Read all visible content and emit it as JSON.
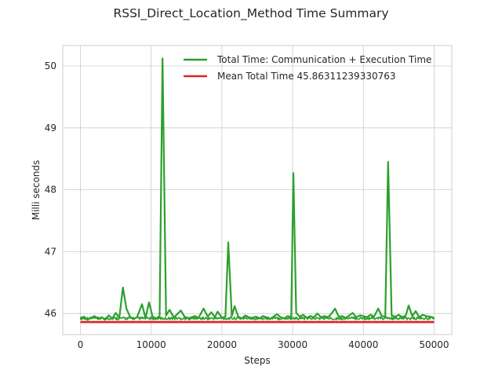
{
  "chart_data": {
    "type": "line",
    "title": "RSSI_Direct_Location_Method Time Summary",
    "xlabel": "Steps",
    "ylabel": "Milli seconds",
    "xlim": [
      -2500,
      52500
    ],
    "ylim": [
      45.66,
      50.33
    ],
    "xticks": [
      0,
      10000,
      20000,
      30000,
      40000,
      50000
    ],
    "yticks": [
      46,
      47,
      48,
      49,
      50
    ],
    "grid": true,
    "legend_position": "top-right",
    "series": [
      {
        "name": "Total Time: Communication + Execution Time",
        "color": "#2ca02c",
        "baseline": 45.9,
        "x_range": [
          0,
          50000
        ],
        "points": [
          [
            0,
            45.92
          ],
          [
            500,
            45.95
          ],
          [
            1000,
            45.9
          ],
          [
            1500,
            45.93
          ],
          [
            2000,
            45.96
          ],
          [
            2500,
            45.91
          ],
          [
            3000,
            45.94
          ],
          [
            3500,
            45.9
          ],
          [
            4000,
            45.97
          ],
          [
            4500,
            45.92
          ],
          [
            5000,
            46.01
          ],
          [
            5500,
            45.93
          ],
          [
            6000,
            46.42
          ],
          [
            6500,
            46.08
          ],
          [
            7000,
            45.95
          ],
          [
            7500,
            45.91
          ],
          [
            8000,
            45.94
          ],
          [
            8700,
            46.15
          ],
          [
            9200,
            45.93
          ],
          [
            9700,
            46.18
          ],
          [
            10200,
            45.95
          ],
          [
            10700,
            45.92
          ],
          [
            11200,
            45.96
          ],
          [
            11600,
            50.12
          ],
          [
            12100,
            45.97
          ],
          [
            12600,
            46.06
          ],
          [
            13200,
            45.94
          ],
          [
            13600,
            45.98
          ],
          [
            14200,
            46.05
          ],
          [
            14700,
            45.95
          ],
          [
            15200,
            45.92
          ],
          [
            15700,
            45.94
          ],
          [
            16200,
            45.96
          ],
          [
            16700,
            45.93
          ],
          [
            17400,
            46.08
          ],
          [
            18000,
            45.95
          ],
          [
            18500,
            46.02
          ],
          [
            19000,
            45.94
          ],
          [
            19400,
            46.03
          ],
          [
            20000,
            45.93
          ],
          [
            20500,
            45.95
          ],
          [
            20900,
            47.15
          ],
          [
            21400,
            45.96
          ],
          [
            21800,
            46.12
          ],
          [
            22300,
            45.95
          ],
          [
            22800,
            45.92
          ],
          [
            23300,
            45.97
          ],
          [
            23800,
            45.94
          ],
          [
            24300,
            45.93
          ],
          [
            24800,
            45.95
          ],
          [
            25300,
            45.92
          ],
          [
            25800,
            45.96
          ],
          [
            26300,
            45.94
          ],
          [
            26800,
            45.91
          ],
          [
            27300,
            45.95
          ],
          [
            27800,
            45.99
          ],
          [
            28300,
            45.94
          ],
          [
            28800,
            45.92
          ],
          [
            29300,
            45.96
          ],
          [
            29800,
            45.94
          ],
          [
            30100,
            48.27
          ],
          [
            30500,
            46.01
          ],
          [
            31000,
            45.95
          ],
          [
            31500,
            45.98
          ],
          [
            32000,
            45.93
          ],
          [
            32500,
            45.96
          ],
          [
            33000,
            45.94
          ],
          [
            33500,
            46.0
          ],
          [
            34000,
            45.94
          ],
          [
            34500,
            45.96
          ],
          [
            35000,
            45.94
          ],
          [
            35500,
            46.0
          ],
          [
            36000,
            46.08
          ],
          [
            36500,
            45.95
          ],
          [
            37000,
            45.96
          ],
          [
            37500,
            45.93
          ],
          [
            38000,
            45.97
          ],
          [
            38500,
            46.01
          ],
          [
            39000,
            45.94
          ],
          [
            39500,
            45.97
          ],
          [
            40000,
            45.96
          ],
          [
            40500,
            45.94
          ],
          [
            41000,
            45.98
          ],
          [
            41500,
            45.95
          ],
          [
            42100,
            46.08
          ],
          [
            42600,
            45.96
          ],
          [
            43100,
            45.95
          ],
          [
            43500,
            48.45
          ],
          [
            44000,
            45.97
          ],
          [
            44500,
            45.95
          ],
          [
            45000,
            45.98
          ],
          [
            45500,
            45.94
          ],
          [
            46000,
            45.97
          ],
          [
            46400,
            46.13
          ],
          [
            46900,
            45.96
          ],
          [
            47400,
            46.04
          ],
          [
            47900,
            45.94
          ],
          [
            48400,
            45.98
          ],
          [
            48900,
            45.96
          ],
          [
            49400,
            45.95
          ],
          [
            50000,
            45.93
          ]
        ]
      },
      {
        "name": "Mean Total Time 45.86311239330763",
        "color": "#d62728",
        "y": 45.86311239330763,
        "x_range": [
          0,
          50000
        ]
      }
    ]
  }
}
